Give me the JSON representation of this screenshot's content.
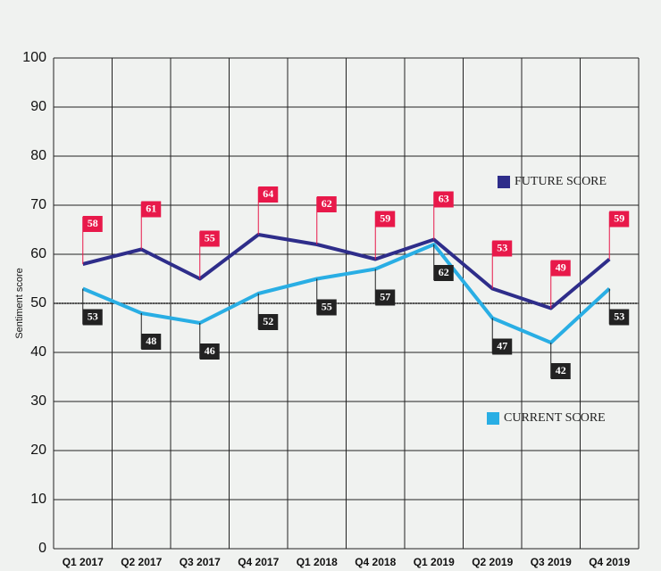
{
  "chart_data": {
    "type": "line",
    "y_label": "Sentiment score",
    "categories": [
      "Q1 2017",
      "Q2 2017",
      "Q3 2017",
      "Q4 2017",
      "Q1 2018",
      "Q4 2018",
      "Q1 2019",
      "Q2 2019",
      "Q3 2019",
      "Q4 2019"
    ],
    "series": [
      {
        "name": "FUTURE SCORE",
        "color": "#2e2d8a",
        "label_color": "#e8194a",
        "values": [
          58,
          61,
          55,
          64,
          62,
          59,
          63,
          53,
          49,
          59
        ]
      },
      {
        "name": "CURRENT SCORE",
        "color": "#29aee4",
        "label_color": "#222222",
        "values": [
          53,
          48,
          46,
          52,
          55,
          57,
          62,
          47,
          42,
          53
        ]
      }
    ],
    "reference_line": 50,
    "ylim": [
      0,
      100
    ],
    "yticks": [
      0,
      10,
      20,
      30,
      40,
      50,
      60,
      70,
      80,
      90,
      100
    ],
    "grid": true
  }
}
